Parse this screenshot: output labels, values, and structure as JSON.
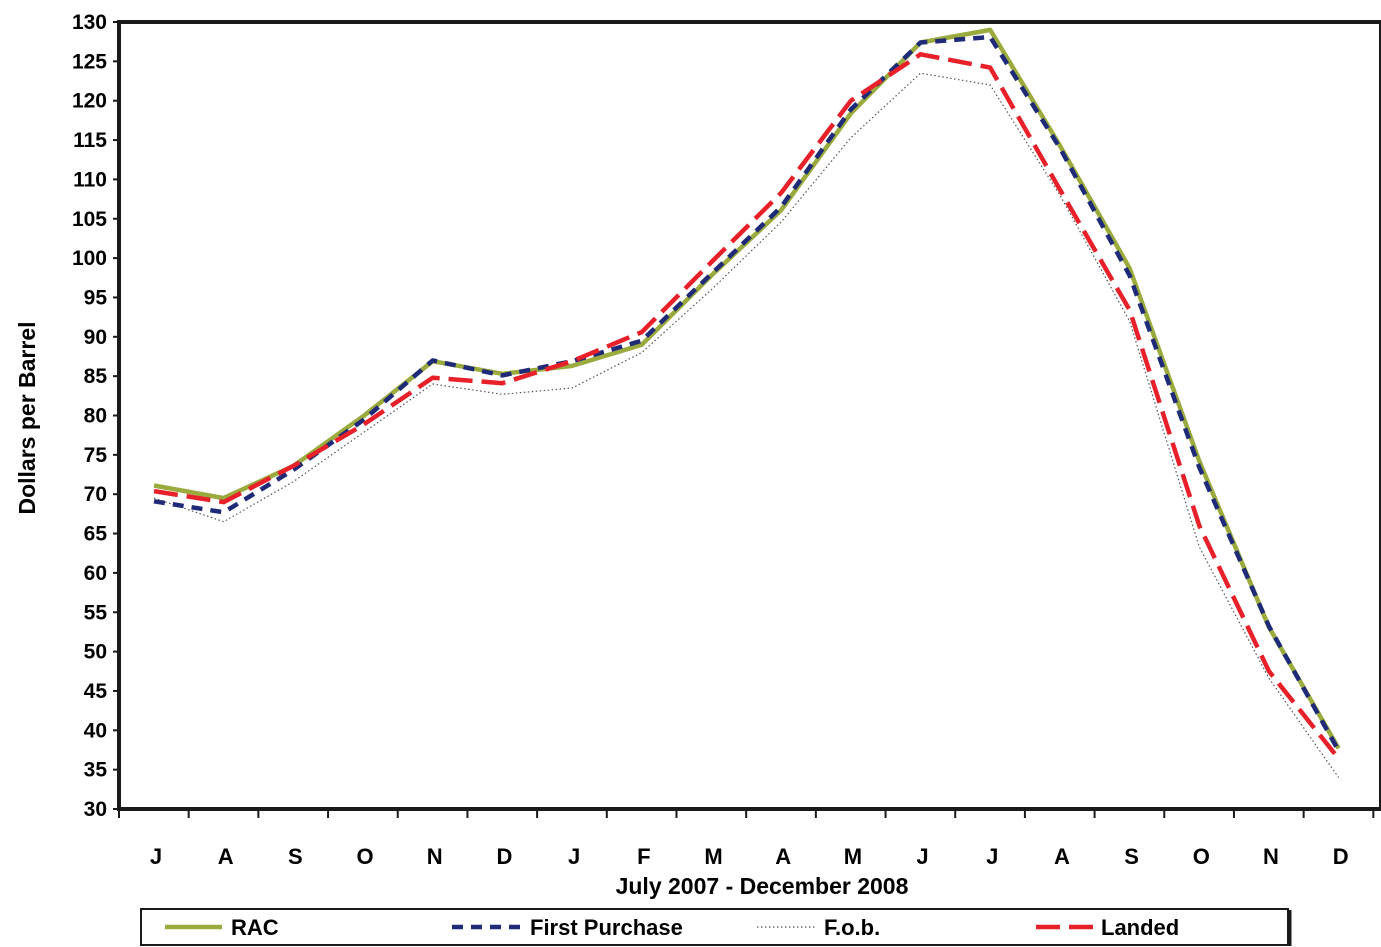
{
  "chart_data": {
    "type": "line",
    "title": "",
    "xlabel": "July 2007 - December 2008",
    "ylabel": "Dollars per Barrel",
    "categories": [
      "J",
      "A",
      "S",
      "O",
      "N",
      "D",
      "J",
      "F",
      "M",
      "A",
      "M",
      "J",
      "J",
      "A",
      "S",
      "O",
      "N",
      "D"
    ],
    "ylim": [
      30,
      130
    ],
    "yticks": [
      30,
      35,
      40,
      45,
      50,
      55,
      60,
      65,
      70,
      75,
      80,
      85,
      90,
      95,
      100,
      105,
      110,
      115,
      120,
      125,
      130
    ],
    "grid": false,
    "legend": "bottom",
    "series": [
      {
        "name": "RAC",
        "color": "#9aaa3c",
        "style": "solid",
        "values": [
          71.1,
          69.5,
          73.6,
          79.9,
          86.9,
          85.3,
          86.3,
          89.0,
          97.8,
          106.1,
          118.4,
          127.4,
          129.0,
          114.3,
          98.7,
          74.2,
          53.1,
          37.7
        ]
      },
      {
        "name": "First Purchase",
        "color": "#1f2a78",
        "style": "dashed",
        "values": [
          69.1,
          67.7,
          73.1,
          79.4,
          87.0,
          85.1,
          86.9,
          89.5,
          98.0,
          106.5,
          118.9,
          127.4,
          128.1,
          114.0,
          97.8,
          73.4,
          53.2,
          37.4
        ]
      },
      {
        "name": "F.o.b.",
        "color": "#555555",
        "style": "dotted",
        "values": [
          69.5,
          66.5,
          71.6,
          77.8,
          84.0,
          82.7,
          83.5,
          88.0,
          96.0,
          104.6,
          115.3,
          123.5,
          122.0,
          108.0,
          92.0,
          63.3,
          46.6,
          34.0
        ]
      },
      {
        "name": "Landed",
        "color": "#e8202a",
        "style": "longdash",
        "values": [
          70.4,
          69.0,
          73.6,
          78.8,
          84.8,
          84.1,
          86.9,
          90.6,
          99.5,
          108.3,
          120.0,
          125.9,
          124.2,
          108.7,
          93.4,
          66.0,
          47.5,
          36.4
        ]
      }
    ]
  }
}
